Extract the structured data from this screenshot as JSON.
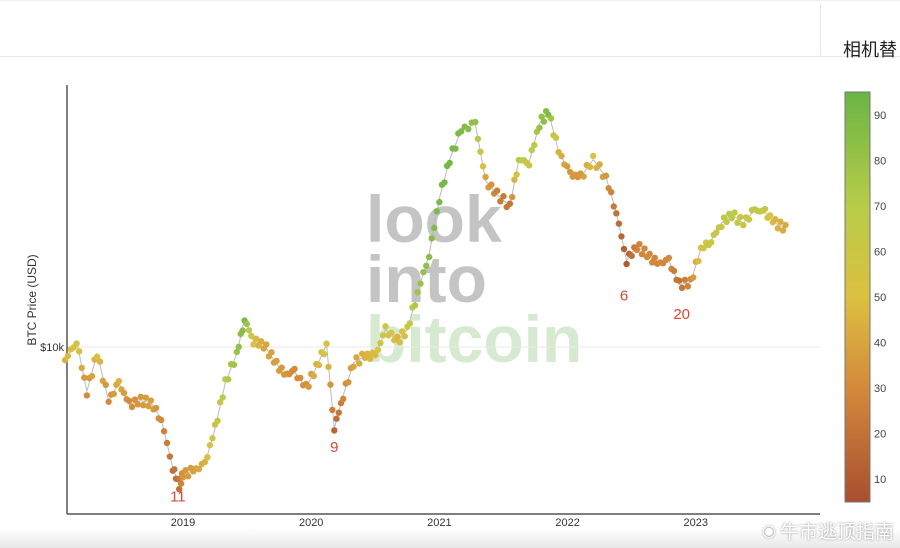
{
  "header": {
    "truncated_title": "相机替"
  },
  "watermark": {
    "text": "牛市逃顶指南",
    "icon": "weibo-icon"
  },
  "logo": {
    "lines": [
      "look",
      "into",
      "bitcoin"
    ]
  },
  "colors": {
    "c5": "#a94e30",
    "c30": "#d48a3a",
    "c50": "#dcc040",
    "c70": "#b8cc48",
    "c95": "#6ab545"
  },
  "chart_data": {
    "type": "scatter",
    "title": "",
    "ylabel": "BTC Price (USD)",
    "yscale": "log",
    "ylim": [
      2800,
      80000
    ],
    "xlim": [
      2018.08,
      2023.72
    ],
    "y_ticks": [
      {
        "value": 10000,
        "label": "$10k"
      }
    ],
    "x_ticks": [
      {
        "value": 2019,
        "label": "2019"
      },
      {
        "value": 2020,
        "label": "2020"
      },
      {
        "value": 2021,
        "label": "2021"
      },
      {
        "value": 2022,
        "label": "2022"
      },
      {
        "value": 2023,
        "label": "2023"
      }
    ],
    "colorbar": {
      "range": [
        5,
        95
      ],
      "ticks": [
        10,
        20,
        30,
        40,
        50,
        60,
        70,
        80,
        90
      ]
    },
    "annotations": [
      {
        "x": 2018.96,
        "price": 2900,
        "text": "11"
      },
      {
        "x": 2020.18,
        "price": 4300,
        "text": "9"
      },
      {
        "x": 2022.44,
        "price": 14500,
        "text": "6"
      },
      {
        "x": 2022.89,
        "price": 12500,
        "text": "20"
      }
    ],
    "points": [
      [
        2018.08,
        9000,
        45
      ],
      [
        2018.17,
        10500,
        55
      ],
      [
        2018.25,
        7000,
        30
      ],
      [
        2018.33,
        9500,
        50
      ],
      [
        2018.42,
        6500,
        30
      ],
      [
        2018.5,
        7500,
        45
      ],
      [
        2018.58,
        6300,
        30
      ],
      [
        2018.67,
        6500,
        35
      ],
      [
        2018.75,
        6400,
        38
      ],
      [
        2018.83,
        5600,
        30
      ],
      [
        2018.92,
        3800,
        20
      ],
      [
        2018.97,
        3300,
        20
      ],
      [
        2019.0,
        3600,
        35
      ],
      [
        2019.08,
        3700,
        38
      ],
      [
        2019.17,
        3900,
        45
      ],
      [
        2019.25,
        5200,
        60
      ],
      [
        2019.33,
        7500,
        70
      ],
      [
        2019.42,
        9500,
        80
      ],
      [
        2019.48,
        12500,
        88
      ],
      [
        2019.55,
        10500,
        50
      ],
      [
        2019.63,
        10200,
        40
      ],
      [
        2019.71,
        9000,
        38
      ],
      [
        2019.79,
        8000,
        35
      ],
      [
        2019.87,
        8200,
        30
      ],
      [
        2019.96,
        7200,
        33
      ],
      [
        2020.04,
        8500,
        45
      ],
      [
        2020.12,
        10200,
        55
      ],
      [
        2020.18,
        5200,
        15
      ],
      [
        2020.25,
        6800,
        28
      ],
      [
        2020.33,
        8800,
        40
      ],
      [
        2020.42,
        9300,
        45
      ],
      [
        2020.5,
        9300,
        48
      ],
      [
        2020.58,
        11500,
        60
      ],
      [
        2020.67,
        10500,
        45
      ],
      [
        2020.75,
        11500,
        60
      ],
      [
        2020.83,
        15500,
        78
      ],
      [
        2020.92,
        21000,
        85
      ],
      [
        2021.0,
        33000,
        90
      ],
      [
        2021.08,
        45000,
        92
      ],
      [
        2021.17,
        57000,
        88
      ],
      [
        2021.28,
        60000,
        82
      ],
      [
        2021.36,
        38000,
        40
      ],
      [
        2021.45,
        34000,
        25
      ],
      [
        2021.55,
        31000,
        22
      ],
      [
        2021.62,
        45000,
        70
      ],
      [
        2021.7,
        44000,
        60
      ],
      [
        2021.78,
        60000,
        80
      ],
      [
        2021.85,
        66000,
        88
      ],
      [
        2021.93,
        48000,
        45
      ],
      [
        2022.02,
        40000,
        35
      ],
      [
        2022.1,
        39000,
        35
      ],
      [
        2022.2,
        45000,
        50
      ],
      [
        2022.3,
        39000,
        35
      ],
      [
        2022.38,
        29500,
        20
      ],
      [
        2022.46,
        20000,
        10
      ],
      [
        2022.54,
        22500,
        28
      ],
      [
        2022.62,
        21000,
        30
      ],
      [
        2022.7,
        19500,
        28
      ],
      [
        2022.79,
        20000,
        30
      ],
      [
        2022.87,
        16500,
        20
      ],
      [
        2022.96,
        16800,
        30
      ],
      [
        2023.04,
        22000,
        55
      ],
      [
        2023.12,
        23500,
        60
      ],
      [
        2023.2,
        27000,
        65
      ],
      [
        2023.28,
        29000,
        68
      ],
      [
        2023.37,
        27000,
        60
      ],
      [
        2023.46,
        30000,
        68
      ],
      [
        2023.54,
        29500,
        60
      ],
      [
        2023.62,
        27000,
        45
      ],
      [
        2023.7,
        26000,
        42
      ]
    ]
  }
}
